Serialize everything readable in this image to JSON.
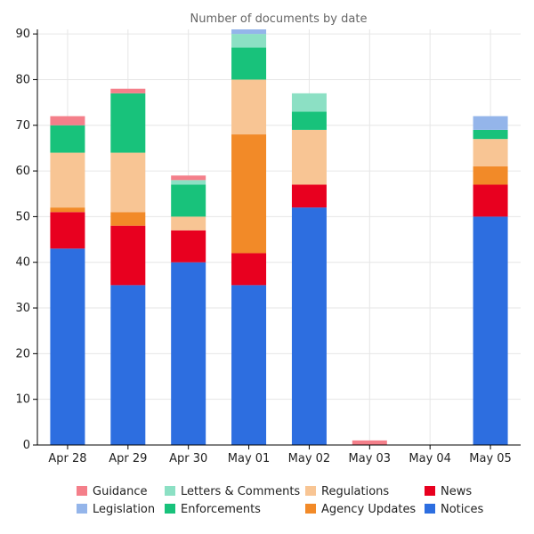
{
  "chart_data": {
    "type": "bar",
    "stacked": true,
    "title": "Number of documents by date",
    "xlabel": "",
    "ylabel": "",
    "ylim": [
      0,
      91
    ],
    "yticks": [
      0,
      10,
      20,
      30,
      40,
      50,
      60,
      70,
      80,
      90
    ],
    "categories": [
      "Apr 28",
      "Apr 29",
      "Apr 30",
      "May 01",
      "May 02",
      "May 03",
      "May 04",
      "May 05"
    ],
    "grid": true,
    "legend_position": "bottom",
    "series": [
      {
        "name": "Notices",
        "color": "#2d6ee0",
        "values": [
          43,
          35,
          40,
          35,
          52,
          0,
          0,
          50
        ]
      },
      {
        "name": "News",
        "color": "#e8001f",
        "values": [
          8,
          13,
          7,
          7,
          5,
          0,
          0,
          7
        ]
      },
      {
        "name": "Agency Updates",
        "color": "#f28a28",
        "values": [
          1,
          3,
          0,
          26,
          0,
          0,
          0,
          4
        ]
      },
      {
        "name": "Regulations",
        "color": "#f8c594",
        "values": [
          12,
          13,
          3,
          12,
          12,
          0,
          0,
          6
        ]
      },
      {
        "name": "Enforcements",
        "color": "#18c27b",
        "values": [
          6,
          13,
          7,
          7,
          4,
          0,
          0,
          2
        ]
      },
      {
        "name": "Letters & Comments",
        "color": "#8ce0c4",
        "values": [
          0,
          0,
          1,
          3,
          4,
          0,
          0,
          0
        ]
      },
      {
        "name": "Legislation",
        "color": "#94b5ea",
        "values": [
          0,
          0,
          0,
          1,
          0,
          0,
          0,
          3
        ]
      },
      {
        "name": "Guidance",
        "color": "#f47f8a",
        "values": [
          2,
          1,
          1,
          0,
          0,
          1,
          0,
          0
        ]
      }
    ],
    "legend_order": [
      "Guidance",
      "Letters & Comments",
      "Regulations",
      "News",
      "Legislation",
      "Enforcements",
      "Agency Updates",
      "Notices"
    ]
  }
}
